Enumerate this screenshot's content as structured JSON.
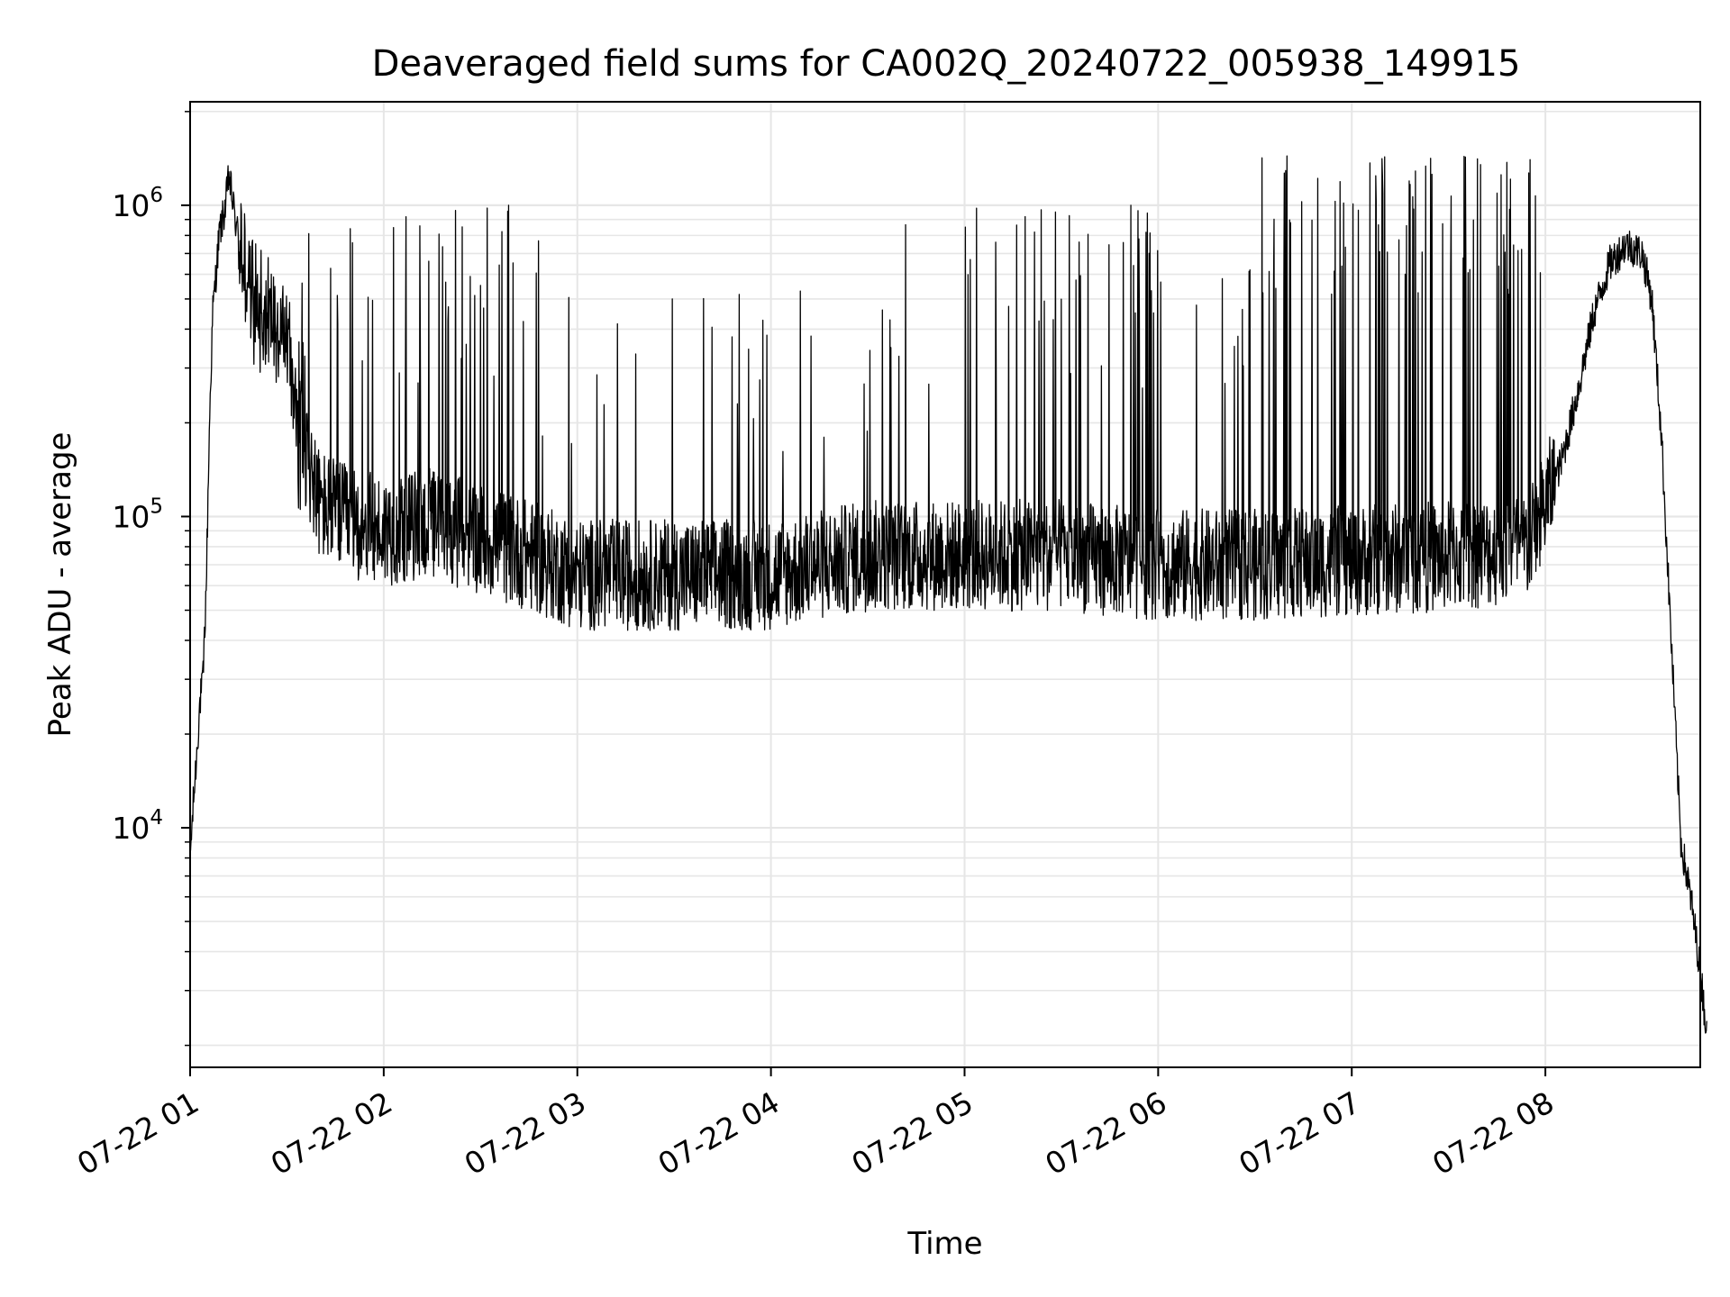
{
  "chart_data": {
    "type": "line",
    "title": "Deaveraged field sums for CA002Q_20240722_005938_149915",
    "xlabel": "Time",
    "ylabel": "Peak ADU - average",
    "yscale": "log",
    "ylim": [
      1700,
      2150000
    ],
    "xlim_hours": [
      1.0,
      8.8
    ],
    "x_tick_labels": [
      "07-22 01",
      "07-22 02",
      "07-22 03",
      "07-22 04",
      "07-22 05",
      "07-22 06",
      "07-22 07",
      "07-22 08"
    ],
    "y_ticks": [
      {
        "base": "10",
        "exp": "4",
        "value": 10000
      },
      {
        "base": "10",
        "exp": "5",
        "value": 100000
      },
      {
        "base": "10",
        "exp": "6",
        "value": 1000000
      }
    ],
    "grid": true,
    "line_color": "#000000",
    "series": [
      {
        "points": [
          [
            "07-22 01:00",
            8000
          ],
          [
            "07-22 01:01",
            12000
          ],
          [
            "07-22 01:02",
            17000
          ],
          [
            "07-22 01:03",
            25000
          ],
          [
            "07-22 01:04",
            30000
          ],
          [
            "07-22 01:05",
            60000
          ],
          [
            "07-22 01:06",
            200000
          ],
          [
            "07-22 01:07",
            450000
          ],
          [
            "07-22 01:09",
            800000
          ],
          [
            "07-22 01:11",
            1000000
          ],
          [
            "07-22 01:12",
            1250000
          ],
          [
            "07-22 01:14",
            900000
          ],
          [
            "07-22 01:17",
            600000
          ],
          [
            "07-22 01:20",
            500000
          ],
          [
            "07-22 01:25",
            450000
          ],
          [
            "07-22 01:30",
            380000
          ],
          [
            "07-22 01:35",
            180000
          ],
          [
            "07-22 01:40",
            110000
          ],
          [
            "07-22 01:50",
            95000
          ],
          [
            "07-22 02:00",
            90000
          ],
          [
            "07-22 02:15",
            95000
          ],
          [
            "07-22 02:30",
            85000
          ],
          [
            "07-22 02:45",
            75000
          ],
          [
            "07-22 03:00",
            65000
          ],
          [
            "07-22 03:30",
            65000
          ],
          [
            "07-22 04:00",
            65000
          ],
          [
            "07-22 04:30",
            75000
          ],
          [
            "07-22 05:00",
            75000
          ],
          [
            "07-22 05:30",
            75000
          ],
          [
            "07-22 06:00",
            70000
          ],
          [
            "07-22 06:30",
            70000
          ],
          [
            "07-22 07:00",
            72000
          ],
          [
            "07-22 07:30",
            75000
          ],
          [
            "07-22 07:55",
            80000
          ],
          [
            "07-22 08:00",
            110000
          ],
          [
            "07-22 08:05",
            150000
          ],
          [
            "07-22 08:10",
            250000
          ],
          [
            "07-22 08:15",
            450000
          ],
          [
            "07-22 08:20",
            650000
          ],
          [
            "07-22 08:25",
            750000
          ],
          [
            "07-22 08:30",
            700000
          ],
          [
            "07-22 08:33",
            500000
          ],
          [
            "07-22 08:36",
            180000
          ],
          [
            "07-22 08:39",
            40000
          ],
          [
            "07-22 08:42",
            9000
          ],
          [
            "07-22 08:45",
            6000
          ],
          [
            "07-22 08:48",
            3500
          ],
          [
            "07-22 08:50",
            2200
          ]
        ]
      }
    ]
  }
}
